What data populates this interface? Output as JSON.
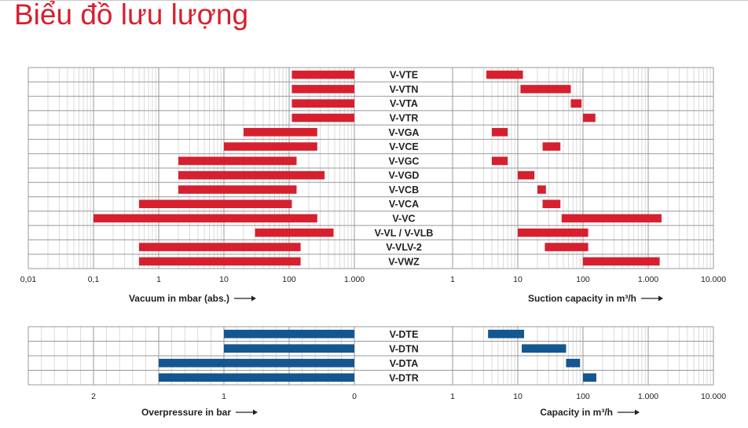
{
  "page": {
    "title": "Biểu đồ lưu lượng"
  },
  "colors": {
    "vacuum_bar": "#d6202f",
    "pressure_bar": "#14568f",
    "title": "#d6202f",
    "grid_major": "#999999",
    "grid_minor": "#d2d2d2"
  },
  "chart_data": [
    {
      "type": "bar",
      "subtype": "floating-range-horizontal",
      "scale": "log",
      "xlim": [
        0.01,
        1000
      ],
      "xlabel": "Vacuum in mbar (abs.)",
      "tick_labels": [
        "0,01",
        "0,1",
        "1",
        "10",
        "100",
        "1.000"
      ],
      "categories": [
        "V-VTE",
        "V-VTN",
        "V-VTA",
        "V-VTR",
        "V-VGA",
        "V-VCE",
        "V-VGC",
        "V-VGD",
        "V-VCB",
        "V-VCA",
        "V-VC",
        "V-VL / V-VLB",
        "V-VLV-2",
        "V-VWZ"
      ],
      "ranges": [
        [
          110,
          1000
        ],
        [
          110,
          1000
        ],
        [
          110,
          1000
        ],
        [
          110,
          1000
        ],
        [
          20,
          270
        ],
        [
          10,
          270
        ],
        [
          2,
          130
        ],
        [
          2,
          350
        ],
        [
          2,
          130
        ],
        [
          0.5,
          110
        ],
        [
          0.1,
          270
        ],
        [
          30,
          480
        ],
        [
          0.5,
          150
        ],
        [
          0.5,
          150
        ]
      ],
      "grid": true
    },
    {
      "type": "bar",
      "subtype": "floating-range-horizontal",
      "scale": "log",
      "xlim": [
        1,
        10000
      ],
      "xlabel": "Suction capacity in m³/h",
      "tick_labels": [
        "1",
        "10",
        "100",
        "1.000",
        "10.000"
      ],
      "categories": [
        "V-VTE",
        "V-VTN",
        "V-VTA",
        "V-VTR",
        "V-VGA",
        "V-VCE",
        "V-VGC",
        "V-VGD",
        "V-VCB",
        "V-VCA",
        "V-VC",
        "V-VL / V-VLB",
        "V-VLV-2",
        "V-VWZ"
      ],
      "ranges": [
        [
          3.3,
          12
        ],
        [
          11,
          65
        ],
        [
          65,
          95
        ],
        [
          100,
          155
        ],
        [
          4,
          7
        ],
        [
          24,
          45
        ],
        [
          4,
          7
        ],
        [
          10,
          18
        ],
        [
          20,
          27
        ],
        [
          24,
          45
        ],
        [
          47,
          1600
        ],
        [
          10,
          120
        ],
        [
          26,
          120
        ],
        [
          100,
          1500
        ]
      ],
      "grid": true
    },
    {
      "type": "bar",
      "subtype": "floating-range-horizontal",
      "scale": "linear-reversed",
      "xlim": [
        2.5,
        0
      ],
      "xlabel": "Overpressure in bar",
      "tick_labels": [
        "2",
        "1",
        "0"
      ],
      "categories": [
        "V-DTE",
        "V-DTN",
        "V-DTA",
        "V-DTR"
      ],
      "ranges": [
        [
          1,
          0
        ],
        [
          1,
          0
        ],
        [
          1.5,
          0
        ],
        [
          1.5,
          0
        ]
      ],
      "grid": true
    },
    {
      "type": "bar",
      "subtype": "floating-range-horizontal",
      "scale": "log",
      "xlim": [
        1,
        10000
      ],
      "xlabel": "Capacity in m³/h",
      "tick_labels": [
        "1",
        "10",
        "100",
        "1.000",
        "10.000"
      ],
      "categories": [
        "V-DTE",
        "V-DTN",
        "V-DTA",
        "V-DTR"
      ],
      "ranges": [
        [
          3.5,
          12.5
        ],
        [
          11.5,
          55
        ],
        [
          55,
          90
        ],
        [
          100,
          160
        ]
      ],
      "grid": true
    }
  ]
}
